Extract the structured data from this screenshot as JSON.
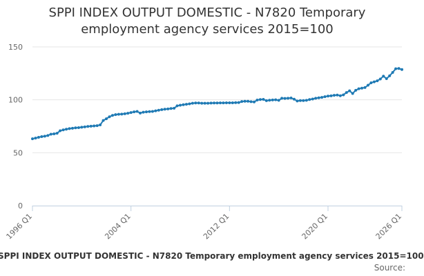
{
  "chart_data": {
    "type": "line",
    "title": "SPPI INDEX OUTPUT DOMESTIC - N7820 Temporary employment agency services 2015=100",
    "xlabel": "",
    "ylabel": "",
    "x_ticks": [
      "1996 Q1",
      "2004 Q1",
      "2012 Q1",
      "2020 Q1",
      "2026 Q1"
    ],
    "y_ticks": [
      0,
      50,
      100,
      150
    ],
    "ylim": [
      0,
      150
    ],
    "grid": "horizontal",
    "series": [
      {
        "name": "SPPI INDEX OUTPUT DOMESTIC - N7820 Temporary employment agency services 2015=100",
        "color": "#1f7ab4",
        "x": [
          "1996 Q1",
          "1996 Q2",
          "1996 Q3",
          "1996 Q4",
          "1997 Q1",
          "1997 Q2",
          "1997 Q3",
          "1997 Q4",
          "1998 Q1",
          "1998 Q2",
          "1998 Q3",
          "1998 Q4",
          "1999 Q1",
          "1999 Q2",
          "1999 Q3",
          "1999 Q4",
          "2000 Q1",
          "2000 Q2",
          "2000 Q3",
          "2000 Q4",
          "2001 Q1",
          "2001 Q2",
          "2001 Q3",
          "2001 Q4",
          "2002 Q1",
          "2002 Q2",
          "2002 Q3",
          "2002 Q4",
          "2003 Q1",
          "2003 Q2",
          "2003 Q3",
          "2003 Q4",
          "2004 Q1",
          "2004 Q2",
          "2004 Q3",
          "2004 Q4",
          "2005 Q1",
          "2005 Q2",
          "2005 Q3",
          "2005 Q4",
          "2006 Q1",
          "2006 Q2",
          "2006 Q3",
          "2006 Q4",
          "2007 Q1",
          "2007 Q2",
          "2007 Q3",
          "2007 Q4",
          "2008 Q1",
          "2008 Q2",
          "2008 Q3",
          "2008 Q4",
          "2009 Q1",
          "2009 Q2",
          "2009 Q3",
          "2009 Q4",
          "2010 Q1",
          "2010 Q2",
          "2010 Q3",
          "2010 Q4",
          "2011 Q1",
          "2011 Q2",
          "2011 Q3",
          "2011 Q4",
          "2012 Q1",
          "2012 Q2",
          "2012 Q3",
          "2012 Q4",
          "2013 Q1",
          "2013 Q2",
          "2013 Q3",
          "2013 Q4",
          "2014 Q1",
          "2014 Q2",
          "2014 Q3",
          "2014 Q4",
          "2015 Q1",
          "2015 Q2",
          "2015 Q3",
          "2015 Q4",
          "2016 Q1",
          "2016 Q2",
          "2016 Q3",
          "2016 Q4",
          "2017 Q1",
          "2017 Q2",
          "2017 Q3",
          "2017 Q4",
          "2018 Q1",
          "2018 Q2",
          "2018 Q3",
          "2018 Q4",
          "2019 Q1",
          "2019 Q2",
          "2019 Q3",
          "2019 Q4",
          "2020 Q1",
          "2020 Q2",
          "2020 Q3",
          "2020 Q4",
          "2021 Q1",
          "2021 Q2",
          "2021 Q3",
          "2021 Q4",
          "2022 Q1",
          "2022 Q2",
          "2022 Q3",
          "2022 Q4",
          "2023 Q1",
          "2023 Q2",
          "2023 Q3",
          "2023 Q4",
          "2024 Q1",
          "2024 Q2",
          "2024 Q3",
          "2024 Q4",
          "2025 Q1",
          "2025 Q2",
          "2025 Q3",
          "2025 Q4",
          "2026 Q1"
        ],
        "values": [
          63.2,
          63.8,
          64.6,
          65.2,
          65.6,
          66.3,
          67.5,
          67.8,
          68.4,
          70.8,
          71.6,
          72.2,
          72.8,
          73.1,
          73.5,
          73.7,
          74.1,
          74.4,
          74.8,
          75.1,
          75.3,
          75.6,
          76.3,
          80.5,
          82.1,
          84.0,
          85.3,
          86.0,
          86.3,
          86.5,
          86.8,
          87.3,
          88.0,
          88.6,
          89.0,
          87.5,
          88.3,
          88.6,
          88.9,
          89.0,
          89.6,
          90.2,
          90.7,
          91.1,
          91.4,
          91.8,
          92.0,
          94.3,
          94.9,
          95.4,
          95.8,
          96.2,
          96.8,
          97.0,
          97.0,
          96.8,
          96.8,
          96.8,
          96.9,
          97.0,
          97.0,
          97.1,
          97.1,
          97.2,
          97.2,
          97.2,
          97.3,
          97.4,
          98.4,
          98.6,
          98.6,
          98.2,
          98.0,
          99.8,
          100.3,
          100.4,
          99.2,
          99.6,
          99.9,
          100.0,
          99.5,
          101.5,
          101.3,
          101.5,
          101.7,
          100.6,
          98.9,
          99.3,
          99.3,
          99.5,
          100.3,
          100.8,
          101.5,
          101.9,
          102.3,
          103.0,
          103.5,
          103.8,
          104.3,
          104.5,
          103.9,
          104.7,
          106.9,
          108.5,
          106.0,
          109.0,
          110.5,
          111.0,
          111.6,
          113.8,
          116.1,
          117.0,
          118.0,
          119.7,
          122.4,
          120.0,
          122.7,
          125.9,
          129.4,
          129.6,
          128.6
        ]
      }
    ],
    "legend_position": "bottom"
  },
  "source_label": "Source:"
}
